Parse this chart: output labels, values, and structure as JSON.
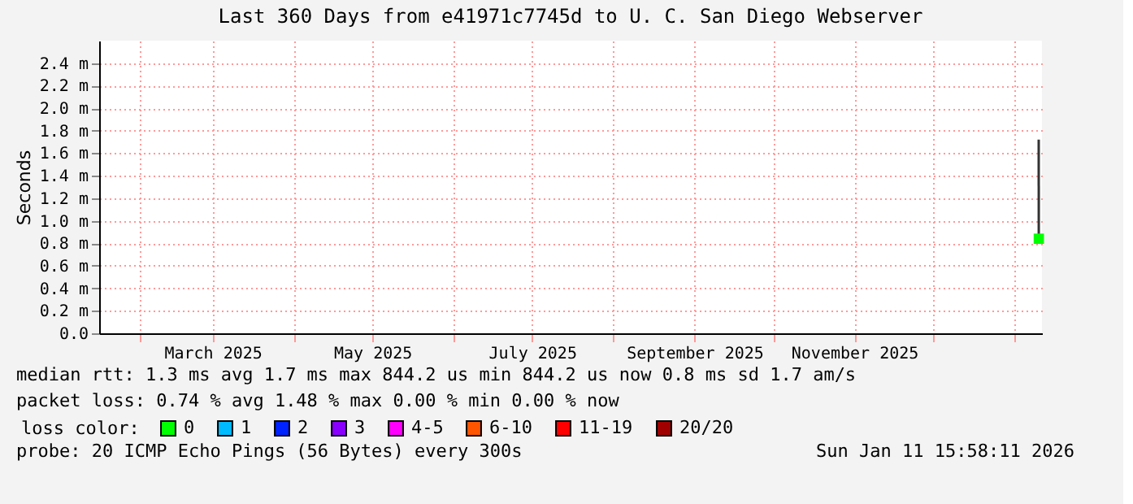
{
  "chart_data": {
    "type": "line",
    "title": "Last 360 Days from e41971c7745d to U. C. San Diego Webserver",
    "ylabel": "Seconds",
    "xlim": [
      "2025-01-16T16:00",
      "2026-01-11T16:00"
    ],
    "xticks": [
      {
        "value": "2025-02-01",
        "label": null
      },
      {
        "value": "2025-03-01",
        "label": "March 2025"
      },
      {
        "value": "2025-04-01",
        "label": null
      },
      {
        "value": "2025-05-01",
        "label": "May 2025"
      },
      {
        "value": "2025-06-01",
        "label": null
      },
      {
        "value": "2025-07-01",
        "label": "July 2025"
      },
      {
        "value": "2025-08-01",
        "label": null
      },
      {
        "value": "2025-09-01",
        "label": "September 2025"
      },
      {
        "value": "2025-10-01",
        "label": null
      },
      {
        "value": "2025-11-01",
        "label": "November 2025"
      },
      {
        "value": "2025-12-01",
        "label": null
      },
      {
        "value": "2026-01-01",
        "label": null
      }
    ],
    "ylim": [
      0,
      2.6
    ],
    "yticks": [
      {
        "value": 0,
        "label": "0.0"
      },
      {
        "value": 0.2,
        "label": "0.2 m"
      },
      {
        "value": 0.4,
        "label": "0.4 m"
      },
      {
        "value": 0.6,
        "label": "0.6 m"
      },
      {
        "value": 0.8,
        "label": "0.8 m"
      },
      {
        "value": 1.0,
        "label": "1.0 m"
      },
      {
        "value": 1.2,
        "label": "1.2 m"
      },
      {
        "value": 1.4,
        "label": "1.4 m"
      },
      {
        "value": 1.6,
        "label": "1.6 m"
      },
      {
        "value": 1.8,
        "label": "1.8 m"
      },
      {
        "value": 2.0,
        "label": "2.0 m"
      },
      {
        "value": 2.2,
        "label": "2.2 m"
      },
      {
        "value": 2.4,
        "label": "2.4 m"
      }
    ],
    "grid": true,
    "legend": "bottom",
    "legend_title": "loss color:",
    "series": [
      {
        "color": "#333333",
        "x": [
          "2026-01-10T10:00",
          "2026-01-10T11:00"
        ],
        "values": [
          1.72,
          0.85
        ]
      },
      {
        "type": "scatter",
        "marker": "square",
        "name": "0",
        "color": "#00ff00",
        "x": [
          "2026-01-10T11:00"
        ],
        "values": [
          0.84
        ]
      },
      {
        "type": "scatter",
        "marker": "square",
        "name": "1",
        "color": "#00bbff"
      },
      {
        "type": "scatter",
        "marker": "square",
        "name": "2",
        "color": "#0022ff"
      },
      {
        "type": "scatter",
        "marker": "square",
        "name": "3",
        "color": "#8a00ff"
      },
      {
        "type": "scatter",
        "marker": "square",
        "name": "4-5",
        "color": "#ff00ff"
      },
      {
        "type": "scatter",
        "marker": "square",
        "name": "6-10",
        "color": "#ff5500"
      },
      {
        "type": "scatter",
        "marker": "square",
        "name": "11-19",
        "color": "#ff0000"
      },
      {
        "type": "scatter",
        "marker": "square",
        "name": "20/20",
        "color": "#a10000"
      }
    ],
    "annotations": [
      "median rtt:  1.3 ms avg  1.7 ms max  844.2 us min  844.2 us now  0.8 ms sd  1.7   am/s",
      "packet loss: 0.74 % avg  1.48 % max  0.00 % min  0.00 % now",
      "probe:       20 ICMP Echo Pings (56 Bytes) every 300s",
      "Sun Jan 11 15:58:11 2026"
    ]
  }
}
